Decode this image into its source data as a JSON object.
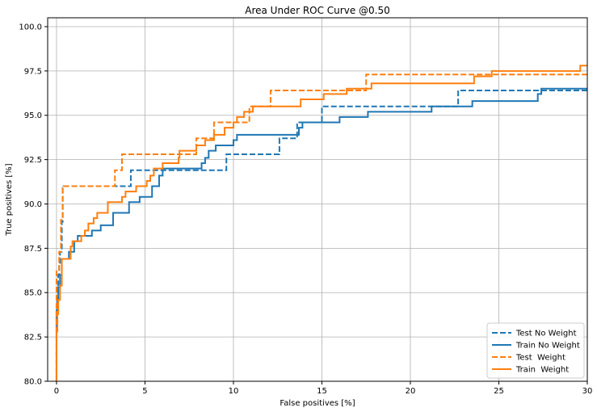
{
  "chart_data": {
    "type": "line",
    "title": "Area Under ROC Curve @0.50",
    "xlabel": "False positives [%]",
    "ylabel": "True positives [%]",
    "xlim": [
      -0.5,
      30
    ],
    "ylim": [
      80,
      100.5
    ],
    "x_ticks": [
      0,
      5,
      10,
      15,
      20,
      25,
      30
    ],
    "y_ticks": [
      80.0,
      82.5,
      85.0,
      87.5,
      90.0,
      92.5,
      95.0,
      97.5,
      100.0
    ],
    "x_tick_labels": [
      "0",
      "5",
      "10",
      "15",
      "20",
      "25",
      "30"
    ],
    "y_tick_labels": [
      "80.0",
      "82.5",
      "85.0",
      "87.5",
      "90.0",
      "92.5",
      "95.0",
      "97.5",
      "100.0"
    ],
    "grid": true,
    "legend_position": "lower-right",
    "series": [
      {
        "name": "Test No Weight",
        "color": "#1f77b4",
        "dashed": true,
        "points": [
          [
            0,
            80
          ],
          [
            0,
            84.5
          ],
          [
            0.1,
            84.5
          ],
          [
            0.1,
            86.0
          ],
          [
            0.15,
            86.0
          ],
          [
            0.15,
            86.6
          ],
          [
            0.2,
            86.6
          ],
          [
            0.2,
            87.3
          ],
          [
            0.3,
            87.3
          ],
          [
            0.3,
            89.0
          ],
          [
            0.35,
            89.0
          ],
          [
            0.35,
            90.9
          ],
          [
            0.4,
            90.9
          ],
          [
            0.4,
            91.0
          ],
          [
            4.2,
            91.0
          ],
          [
            4.2,
            91.9
          ],
          [
            9.6,
            91.9
          ],
          [
            9.6,
            92.8
          ],
          [
            12.6,
            92.8
          ],
          [
            12.6,
            93.7
          ],
          [
            13.6,
            93.7
          ],
          [
            13.6,
            94.6
          ],
          [
            15.0,
            94.6
          ],
          [
            15.0,
            95.5
          ],
          [
            22.7,
            95.5
          ],
          [
            22.7,
            96.4
          ],
          [
            30,
            96.4
          ]
        ]
      },
      {
        "name": "Train No Weight",
        "color": "#1f77b4",
        "dashed": false,
        "points": [
          [
            0,
            80
          ],
          [
            0,
            84.0
          ],
          [
            0.05,
            84.0
          ],
          [
            0.05,
            84.7
          ],
          [
            0.1,
            84.7
          ],
          [
            0.1,
            85.3
          ],
          [
            0.2,
            85.3
          ],
          [
            0.2,
            86.0
          ],
          [
            0.3,
            86.0
          ],
          [
            0.3,
            86.9
          ],
          [
            0.7,
            86.9
          ],
          [
            0.7,
            87.3
          ],
          [
            1.0,
            87.3
          ],
          [
            1.0,
            87.9
          ],
          [
            1.2,
            87.9
          ],
          [
            1.2,
            88.2
          ],
          [
            2.0,
            88.2
          ],
          [
            2.0,
            88.5
          ],
          [
            2.5,
            88.5
          ],
          [
            2.5,
            88.8
          ],
          [
            3.2,
            88.8
          ],
          [
            3.2,
            89.5
          ],
          [
            4.1,
            89.5
          ],
          [
            4.1,
            90.1
          ],
          [
            4.7,
            90.1
          ],
          [
            4.7,
            90.4
          ],
          [
            5.4,
            90.4
          ],
          [
            5.4,
            91.0
          ],
          [
            5.8,
            91.0
          ],
          [
            5.8,
            91.6
          ],
          [
            6.0,
            91.6
          ],
          [
            6.0,
            92.0
          ],
          [
            8.2,
            92.0
          ],
          [
            8.2,
            92.3
          ],
          [
            8.4,
            92.3
          ],
          [
            8.4,
            92.6
          ],
          [
            8.6,
            92.6
          ],
          [
            8.6,
            93.0
          ],
          [
            9.0,
            93.0
          ],
          [
            9.0,
            93.3
          ],
          [
            10.0,
            93.3
          ],
          [
            10.0,
            93.6
          ],
          [
            10.2,
            93.6
          ],
          [
            10.2,
            93.9
          ],
          [
            13.7,
            93.9
          ],
          [
            13.7,
            94.3
          ],
          [
            13.9,
            94.3
          ],
          [
            13.9,
            94.6
          ],
          [
            16.0,
            94.6
          ],
          [
            16.0,
            94.9
          ],
          [
            17.6,
            94.9
          ],
          [
            17.6,
            95.2
          ],
          [
            21.2,
            95.2
          ],
          [
            21.2,
            95.5
          ],
          [
            23.5,
            95.5
          ],
          [
            23.5,
            95.8
          ],
          [
            27.2,
            95.8
          ],
          [
            27.2,
            96.2
          ],
          [
            27.4,
            96.2
          ],
          [
            27.4,
            96.5
          ],
          [
            30,
            96.5
          ]
        ]
      },
      {
        "name": "Test  Weight",
        "color": "#ff7f0e",
        "dashed": true,
        "points": [
          [
            0,
            80
          ],
          [
            0,
            86.2
          ],
          [
            0.15,
            86.2
          ],
          [
            0.15,
            87.3
          ],
          [
            0.25,
            87.3
          ],
          [
            0.25,
            89.1
          ],
          [
            0.35,
            89.1
          ],
          [
            0.35,
            91.0
          ],
          [
            3.3,
            91.0
          ],
          [
            3.3,
            91.9
          ],
          [
            3.7,
            91.9
          ],
          [
            3.7,
            92.8
          ],
          [
            7.9,
            92.8
          ],
          [
            7.9,
            93.7
          ],
          [
            8.9,
            93.7
          ],
          [
            8.9,
            94.6
          ],
          [
            10.9,
            94.6
          ],
          [
            10.9,
            95.5
          ],
          [
            12.1,
            95.5
          ],
          [
            12.1,
            96.4
          ],
          [
            17.5,
            96.4
          ],
          [
            17.5,
            97.3
          ],
          [
            30,
            97.3
          ]
        ]
      },
      {
        "name": "Train  Weight",
        "color": "#ff7f0e",
        "dashed": false,
        "points": [
          [
            0,
            80
          ],
          [
            0,
            82.8
          ],
          [
            0.05,
            82.8
          ],
          [
            0.05,
            83.8
          ],
          [
            0.1,
            83.8
          ],
          [
            0.1,
            84.6
          ],
          [
            0.2,
            84.6
          ],
          [
            0.2,
            85.4
          ],
          [
            0.3,
            85.4
          ],
          [
            0.3,
            86.9
          ],
          [
            0.8,
            86.9
          ],
          [
            0.8,
            87.6
          ],
          [
            0.9,
            87.6
          ],
          [
            0.9,
            87.9
          ],
          [
            1.4,
            87.9
          ],
          [
            1.4,
            88.2
          ],
          [
            1.6,
            88.2
          ],
          [
            1.6,
            88.5
          ],
          [
            1.8,
            88.5
          ],
          [
            1.8,
            88.9
          ],
          [
            2.1,
            88.9
          ],
          [
            2.1,
            89.2
          ],
          [
            2.3,
            89.2
          ],
          [
            2.3,
            89.5
          ],
          [
            2.9,
            89.5
          ],
          [
            2.9,
            90.1
          ],
          [
            3.7,
            90.1
          ],
          [
            3.7,
            90.4
          ],
          [
            3.9,
            90.4
          ],
          [
            3.9,
            90.7
          ],
          [
            4.5,
            90.7
          ],
          [
            4.5,
            91.0
          ],
          [
            5.1,
            91.0
          ],
          [
            5.1,
            91.3
          ],
          [
            5.3,
            91.3
          ],
          [
            5.3,
            91.6
          ],
          [
            5.5,
            91.6
          ],
          [
            5.5,
            92.0
          ],
          [
            6.0,
            92.0
          ],
          [
            6.0,
            92.3
          ],
          [
            6.9,
            92.3
          ],
          [
            6.9,
            92.6
          ],
          [
            6.95,
            92.6
          ],
          [
            6.95,
            93.0
          ],
          [
            7.9,
            93.0
          ],
          [
            7.9,
            93.3
          ],
          [
            8.4,
            93.3
          ],
          [
            8.4,
            93.6
          ],
          [
            8.9,
            93.6
          ],
          [
            8.9,
            93.9
          ],
          [
            9.5,
            93.9
          ],
          [
            9.5,
            94.3
          ],
          [
            10.0,
            94.3
          ],
          [
            10.0,
            94.6
          ],
          [
            10.2,
            94.6
          ],
          [
            10.2,
            94.9
          ],
          [
            10.6,
            94.9
          ],
          [
            10.6,
            95.2
          ],
          [
            11.1,
            95.2
          ],
          [
            11.1,
            95.5
          ],
          [
            13.8,
            95.5
          ],
          [
            13.8,
            95.9
          ],
          [
            15.1,
            95.9
          ],
          [
            15.1,
            96.2
          ],
          [
            16.4,
            96.2
          ],
          [
            16.4,
            96.5
          ],
          [
            17.8,
            96.5
          ],
          [
            17.8,
            96.8
          ],
          [
            23.6,
            96.8
          ],
          [
            23.6,
            97.2
          ],
          [
            24.6,
            97.2
          ],
          [
            24.6,
            97.5
          ],
          [
            29.6,
            97.5
          ],
          [
            29.6,
            97.8
          ],
          [
            30,
            97.8
          ]
        ]
      }
    ]
  }
}
